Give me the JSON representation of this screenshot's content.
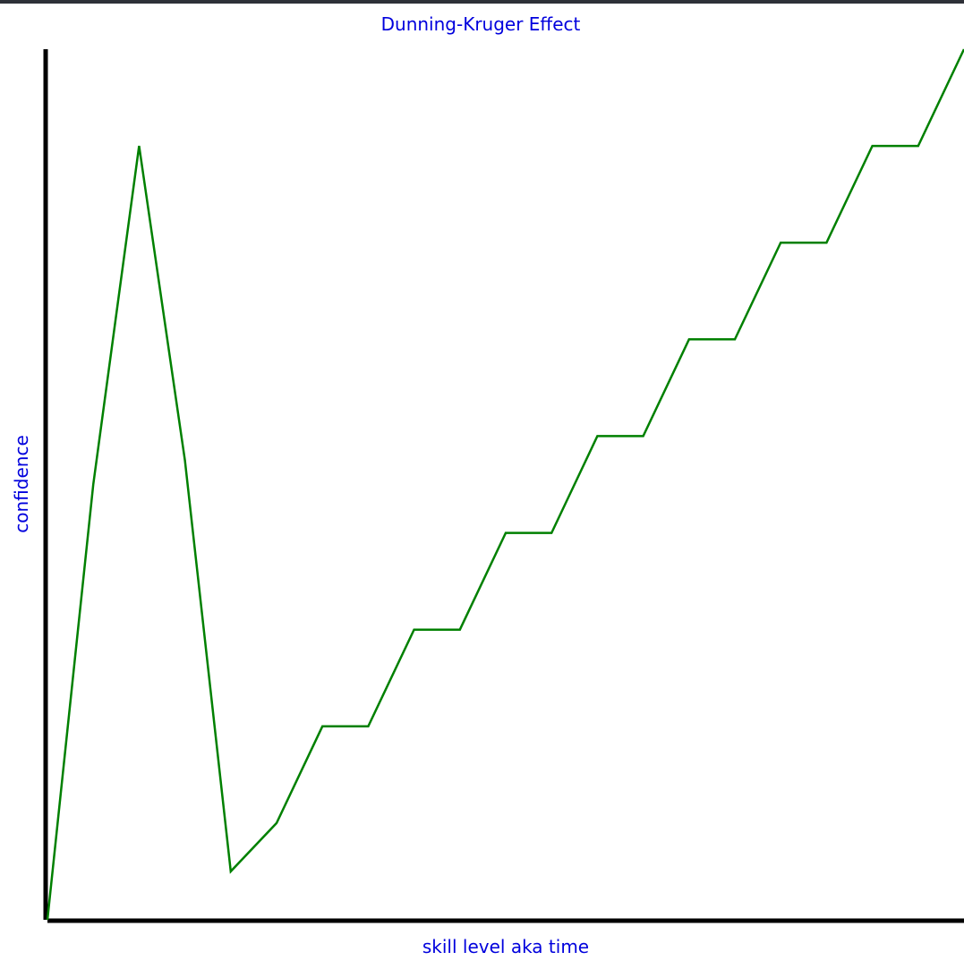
{
  "chart_data": {
    "type": "line",
    "title": "Dunning-Kruger Effect",
    "xlabel": "skill level aka time",
    "ylabel": "confidence",
    "xlim": [
      0,
      20
    ],
    "ylim": [
      0,
      18
    ],
    "grid": false,
    "axis_ticks": false,
    "colors": {
      "line": "#008000",
      "axis": "#000000",
      "text": "#0000dd"
    },
    "series": [
      {
        "x": [
          0,
          1,
          2,
          3,
          4,
          5,
          6,
          7,
          8,
          9,
          10,
          11,
          12,
          13,
          14,
          15,
          16,
          17,
          18,
          19,
          20
        ],
        "y": [
          0,
          9,
          16,
          9.5,
          1,
          2,
          4,
          4,
          6,
          6,
          8,
          8,
          10,
          10,
          12,
          12,
          14,
          14,
          16,
          16,
          18
        ]
      }
    ]
  }
}
